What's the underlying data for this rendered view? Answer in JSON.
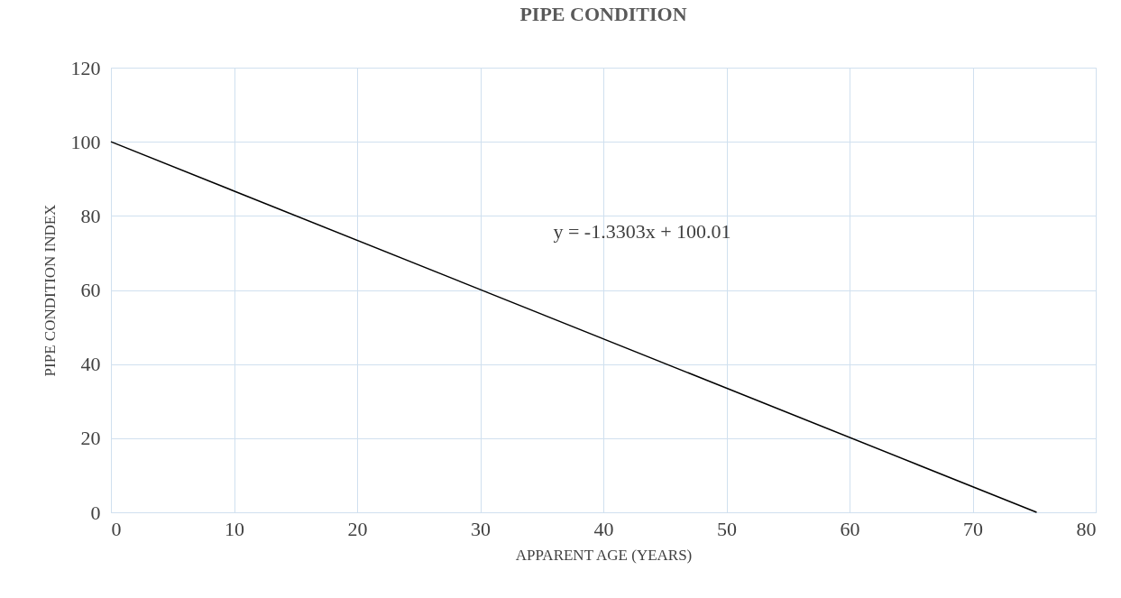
{
  "chart_data": {
    "type": "line",
    "title": "PIPE CONDITION",
    "xlabel": "APPARENT AGE (YEARS)",
    "ylabel": "PIPE CONDITION INDEX",
    "x": [
      0,
      75.2
    ],
    "values": [
      100,
      0
    ],
    "color": "#000000",
    "xlim": [
      0,
      80
    ],
    "xticks": [
      0,
      10,
      20,
      30,
      40,
      50,
      60,
      70,
      80
    ],
    "ylim": [
      0,
      120
    ],
    "yticks": [
      0,
      20,
      40,
      60,
      80,
      100,
      120
    ],
    "grid": true,
    "annotations": [
      "y = -1.3303x + 100.01"
    ]
  }
}
